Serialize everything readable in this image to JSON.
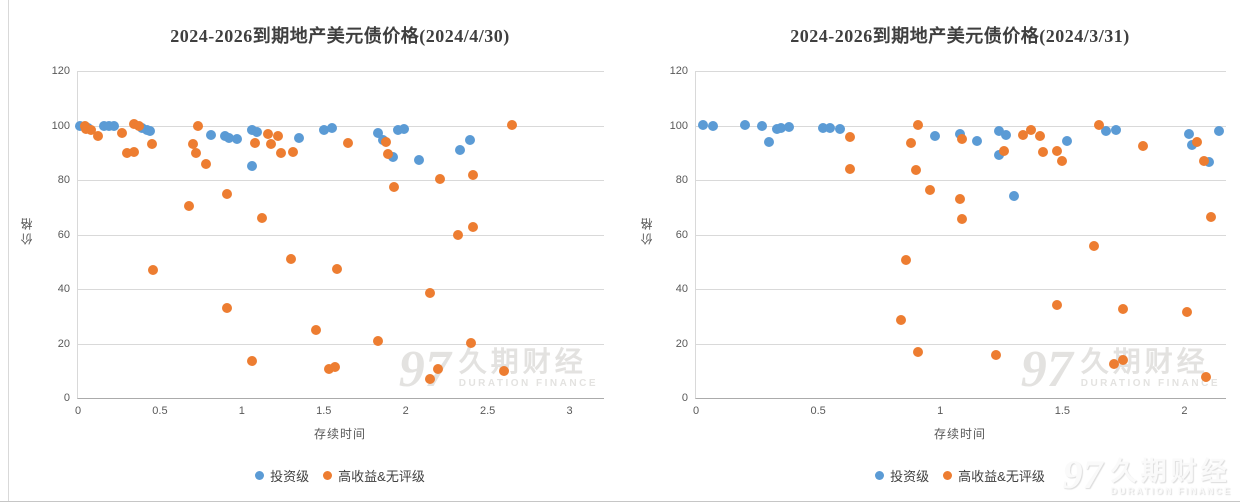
{
  "brand": {
    "number": "97",
    "name": "久期财经",
    "subtitle": "DURATION FINANCE"
  },
  "colors": {
    "investment_grade": "#5B9BD5",
    "high_yield_unrated": "#ED7D31",
    "gridline": "#D9D9D9",
    "title_text": "#3F3F3F",
    "axis_text": "#595959"
  },
  "chart_data": [
    {
      "type": "scatter",
      "title": "2024-2026到期地产美元债价格(2024/4/30)",
      "xlabel": "存续时间",
      "ylabel": "价格",
      "xlim": [
        0,
        3.21
      ],
      "ylim": [
        0,
        120
      ],
      "xticks": [
        0,
        0.5,
        1,
        1.5,
        2,
        2.5,
        3
      ],
      "yticks": [
        0,
        20,
        40,
        60,
        80,
        100,
        120
      ],
      "grid": "horizontal",
      "legend_position": "bottom",
      "series": [
        {
          "name": "投资级",
          "color": "#5B9BD5",
          "points": [
            [
              0.01,
              100
            ],
            [
              0.06,
              99.2
            ],
            [
              0.16,
              100
            ],
            [
              0.19,
              99.8
            ],
            [
              0.22,
              100
            ],
            [
              0.39,
              99
            ],
            [
              0.42,
              98.4
            ],
            [
              0.44,
              98
            ],
            [
              0.81,
              96.5
            ],
            [
              0.9,
              96.2
            ],
            [
              0.92,
              95.3
            ],
            [
              0.97,
              95
            ],
            [
              1.06,
              98.2
            ],
            [
              1.09,
              97.7
            ],
            [
              1.06,
              85
            ],
            [
              1.35,
              95.5
            ],
            [
              1.5,
              98.5
            ],
            [
              1.55,
              99
            ],
            [
              1.83,
              97.3
            ],
            [
              1.86,
              94.8
            ],
            [
              1.92,
              88.3
            ],
            [
              1.95,
              98.2
            ],
            [
              1.99,
              98.8
            ],
            [
              2.08,
              87.4
            ],
            [
              2.33,
              91
            ],
            [
              2.39,
              94.5
            ]
          ]
        },
        {
          "name": "高收益&无评级",
          "color": "#ED7D31",
          "points": [
            [
              0.04,
              99.8
            ],
            [
              0.05,
              98.6
            ],
            [
              0.08,
              98.2
            ],
            [
              0.12,
              96
            ],
            [
              0.27,
              97.2
            ],
            [
              0.3,
              89.8
            ],
            [
              0.34,
              90.2
            ],
            [
              0.34,
              100.5
            ],
            [
              0.37,
              100
            ],
            [
              0.45,
              93.2
            ],
            [
              0.46,
              47
            ],
            [
              0.68,
              70.5
            ],
            [
              0.7,
              93.2
            ],
            [
              0.72,
              89.8
            ],
            [
              0.73,
              100
            ],
            [
              0.78,
              86
            ],
            [
              0.91,
              75
            ],
            [
              0.91,
              33
            ],
            [
              1.06,
              13.5
            ],
            [
              1.08,
              93.4
            ],
            [
              1.12,
              66
            ],
            [
              1.16,
              97
            ],
            [
              1.18,
              93.3
            ],
            [
              1.22,
              96.2
            ],
            [
              1.24,
              90
            ],
            [
              1.31,
              90.3
            ],
            [
              1.3,
              51
            ],
            [
              1.45,
              25
            ],
            [
              1.53,
              10.5
            ],
            [
              1.57,
              11.2
            ],
            [
              1.58,
              47.5
            ],
            [
              1.65,
              93.6
            ],
            [
              1.83,
              21
            ],
            [
              1.88,
              94.1
            ],
            [
              1.89,
              89.6
            ],
            [
              1.93,
              77.3
            ],
            [
              2.15,
              38.6
            ],
            [
              2.15,
              6.9
            ],
            [
              2.2,
              10.5
            ],
            [
              2.21,
              80.5
            ],
            [
              2.32,
              60
            ],
            [
              2.41,
              62.8
            ],
            [
              2.41,
              81.7
            ],
            [
              2.4,
              20.2
            ],
            [
              2.6,
              9.8
            ],
            [
              2.65,
              100.3
            ]
          ]
        }
      ]
    },
    {
      "type": "scatter",
      "title": "2024-2026到期地产美元债价格(2024/3/31)",
      "xlabel": "存续时间",
      "ylabel": "价格",
      "xlim": [
        0,
        2.17
      ],
      "ylim": [
        0,
        120
      ],
      "xticks": [
        0,
        0.5,
        1,
        1.5,
        2
      ],
      "yticks": [
        0,
        20,
        40,
        60,
        80,
        100,
        120
      ],
      "grid": "horizontal",
      "legend_position": "bottom",
      "series": [
        {
          "name": "投资级",
          "color": "#5B9BD5",
          "points": [
            [
              0.03,
              100.3
            ],
            [
              0.07,
              100
            ],
            [
              0.2,
              100.3
            ],
            [
              0.27,
              100
            ],
            [
              0.3,
              94
            ],
            [
              0.33,
              98.8
            ],
            [
              0.35,
              99.2
            ],
            [
              0.38,
              99.6
            ],
            [
              0.52,
              99
            ],
            [
              0.55,
              99.2
            ],
            [
              0.59,
              98.8
            ],
            [
              0.98,
              96.2
            ],
            [
              1.08,
              96.8
            ],
            [
              1.15,
              94.4
            ],
            [
              1.24,
              97.8
            ],
            [
              1.27,
              96.4
            ],
            [
              1.24,
              89
            ],
            [
              1.3,
              74.2
            ],
            [
              1.52,
              94.4
            ],
            [
              1.68,
              97.8
            ],
            [
              1.72,
              98.4
            ],
            [
              2.02,
              96.8
            ],
            [
              2.03,
              92.9
            ],
            [
              2.1,
              86.5
            ],
            [
              2.14,
              97.8
            ]
          ]
        },
        {
          "name": "高收益&无评级",
          "color": "#ED7D31",
          "points": [
            [
              0.63,
              95.8
            ],
            [
              0.63,
              84.1
            ],
            [
              0.84,
              28.8
            ],
            [
              0.86,
              50.5
            ],
            [
              0.88,
              93.5
            ],
            [
              0.9,
              83.8
            ],
            [
              0.91,
              100.3
            ],
            [
              0.91,
              17
            ],
            [
              0.96,
              76.2
            ],
            [
              1.08,
              72.9
            ],
            [
              1.09,
              65.8
            ],
            [
              1.09,
              95.1
            ],
            [
              1.23,
              15.8
            ],
            [
              1.26,
              90.8
            ],
            [
              1.34,
              96.5
            ],
            [
              1.37,
              98.4
            ],
            [
              1.41,
              96.3
            ],
            [
              1.42,
              90.2
            ],
            [
              1.48,
              90.5
            ],
            [
              1.48,
              34.2
            ],
            [
              1.5,
              86.8
            ],
            [
              1.63,
              55.8
            ],
            [
              1.65,
              100.3
            ],
            [
              1.71,
              12.4
            ],
            [
              1.75,
              13.8
            ],
            [
              1.75,
              32.5
            ],
            [
              1.83,
              92.6
            ],
            [
              2.01,
              31.5
            ],
            [
              2.05,
              94.1
            ],
            [
              2.08,
              87.1
            ],
            [
              2.09,
              7.8
            ],
            [
              2.11,
              66.5
            ]
          ]
        }
      ]
    }
  ]
}
